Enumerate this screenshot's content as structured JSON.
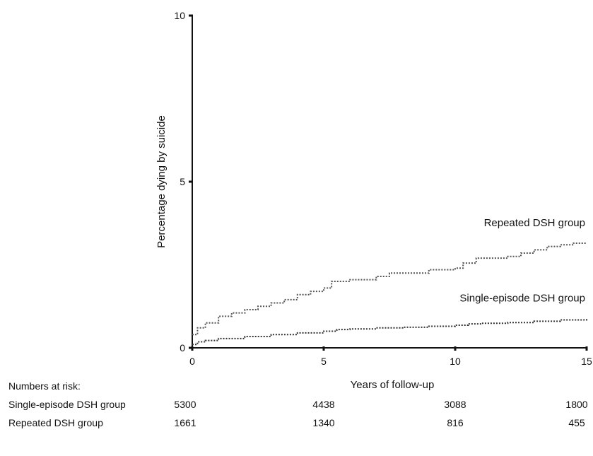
{
  "chart_data": {
    "type": "line",
    "title": "",
    "xlabel": "Years of follow-up",
    "ylabel": "Percentage dying by suicide",
    "xlim": [
      0,
      15
    ],
    "ylim": [
      0,
      10
    ],
    "xticks": [
      0,
      5,
      10,
      15
    ],
    "yticks": [
      0,
      5,
      10
    ],
    "grid": false,
    "legend": "inline labels at right end of each curve",
    "series": [
      {
        "name": "Repeated DSH group",
        "style": "dotted",
        "color": "#555555",
        "x": [
          0,
          0.2,
          0.5,
          1,
          1.5,
          2,
          2.5,
          3,
          3.5,
          4,
          4.5,
          5,
          5.3,
          6,
          7,
          7.5,
          8,
          9,
          10,
          10.3,
          10.8,
          11,
          12,
          12.5,
          13,
          13.5,
          14,
          14.5,
          15
        ],
        "y": [
          0.4,
          0.6,
          0.75,
          0.95,
          1.05,
          1.15,
          1.25,
          1.35,
          1.45,
          1.6,
          1.7,
          1.8,
          2.0,
          2.05,
          2.15,
          2.25,
          2.25,
          2.35,
          2.4,
          2.55,
          2.7,
          2.7,
          2.75,
          2.85,
          2.95,
          3.05,
          3.1,
          3.15,
          3.15
        ]
      },
      {
        "name": "Single-episode DSH group",
        "style": "dotted",
        "color": "#333333",
        "x": [
          0,
          0.2,
          0.5,
          1,
          2,
          3,
          4,
          5,
          5.5,
          6,
          7,
          8,
          9,
          10,
          10.5,
          11,
          12,
          13,
          14,
          15
        ],
        "y": [
          0.1,
          0.18,
          0.22,
          0.28,
          0.34,
          0.4,
          0.45,
          0.5,
          0.55,
          0.57,
          0.6,
          0.62,
          0.65,
          0.68,
          0.72,
          0.74,
          0.76,
          0.8,
          0.84,
          0.88
        ]
      }
    ]
  },
  "risk_table": {
    "header": "Numbers at risk:",
    "rows": [
      {
        "label": "Single-episode DSH group",
        "values": [
          "5300",
          "4438",
          "3088",
          "1800"
        ]
      },
      {
        "label": "Repeated DSH group",
        "values": [
          "1661",
          "1340",
          "816",
          "455"
        ]
      }
    ]
  }
}
